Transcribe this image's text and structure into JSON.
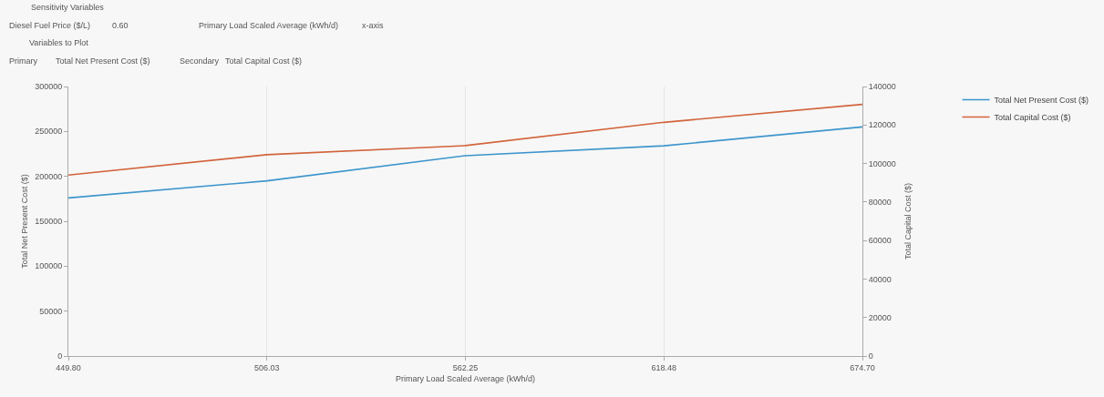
{
  "chart_data": {
    "type": "line",
    "annotations": [
      "Sensitivity Variables",
      "Diesel Fuel Price ($/L)",
      "0.60",
      "Primary Load Scaled Average (kWh/d)",
      "x-axis",
      "Variables to Plot",
      "Primary",
      "Total Net Present Cost ($)",
      "Secondary",
      "Total Capital Cost ($)"
    ],
    "xlabel": "Primary Load Scaled Average (kWh/d)",
    "ylabel": "Total Net Present Cost ($)",
    "y2label": "Total Capital Cost ($)",
    "x": [
      449.8,
      506.03,
      562.25,
      618.48,
      674.7
    ],
    "series": [
      {
        "name": "Total Net Present Cost ($)",
        "color": "#3d95cc",
        "values": [
          176000,
          195000,
          223000,
          234000,
          255000
        ]
      },
      {
        "name": "Total Capital Cost ($)",
        "color": "#d2643c",
        "axis": "y2",
        "values": [
          94000,
          104600,
          109300,
          121400,
          130700
        ]
      }
    ],
    "xlim": [
      449.8,
      674.7
    ],
    "xticks": [
      {
        "value": 449.8,
        "label": "449.80"
      },
      {
        "value": 506.03,
        "label": "506.03"
      },
      {
        "value": 562.25,
        "label": "562.25"
      },
      {
        "value": 618.48,
        "label": "618.48"
      },
      {
        "value": 674.7,
        "label": "674.70"
      }
    ],
    "ylim": [
      0,
      300000
    ],
    "yticks": [
      0,
      50000,
      100000,
      150000,
      200000,
      250000,
      300000
    ],
    "y2lim": [
      0,
      140000
    ],
    "y2ticks": [
      0,
      20000,
      40000,
      60000,
      80000,
      100000,
      120000,
      140000
    ],
    "grid": "x",
    "legend": "top right",
    "marker": "none",
    "line_style": "solid"
  }
}
